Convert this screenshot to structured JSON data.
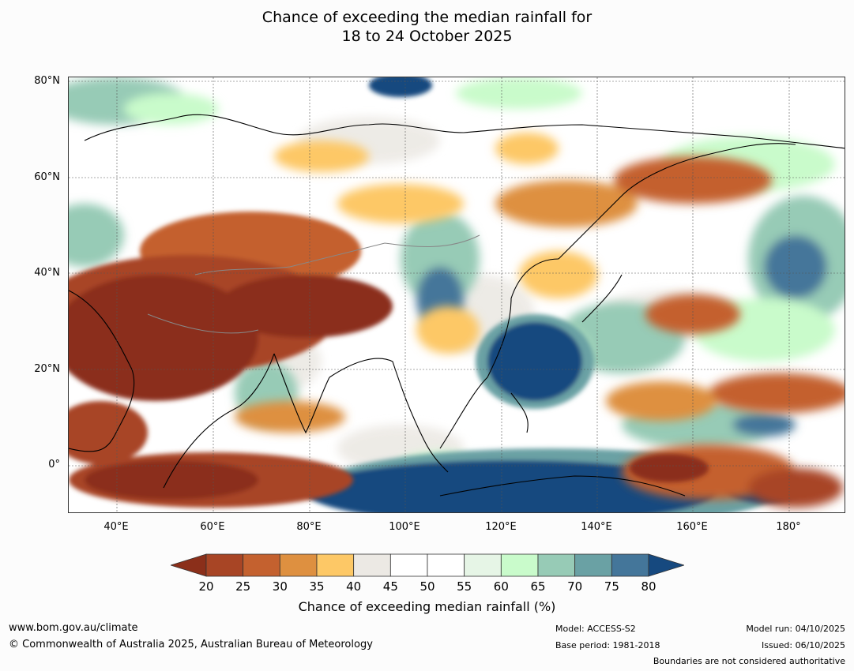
{
  "title": {
    "line1": "Chance of exceeding the median rainfall for",
    "line2": "18 to 24 October 2025"
  },
  "map": {
    "lat_labels": [
      "80°N",
      "60°N",
      "40°N",
      "20°N",
      "0°"
    ],
    "lon_labels": [
      "40°E",
      "60°E",
      "80°E",
      "100°E",
      "120°E",
      "140°E",
      "160°E",
      "180°"
    ]
  },
  "colorbar": {
    "ticks": [
      "20",
      "25",
      "30",
      "35",
      "40",
      "45",
      "50",
      "55",
      "60",
      "65",
      "70",
      "75",
      "80"
    ],
    "colors": [
      "#8b2f1a",
      "#a84525",
      "#c4612f",
      "#de9040",
      "#fdc866",
      "#ece9e4",
      "#ffffff",
      "#ffffff",
      "#e6f5e6",
      "#c9fbcb",
      "#97cbb6",
      "#6aa1a4",
      "#44769a",
      "#16497f"
    ],
    "label": "Chance of exceeding median rainfall (%)"
  },
  "footer": {
    "website": "www.bom.gov.au/climate",
    "copyright": "© Commonwealth of Australia 2025, Australian Bureau of Meteorology",
    "model": "Model: ACCESS-S2",
    "base_period": "Base period: 1981-2018",
    "model_run": "Model run: 04/10/2025",
    "issued": "Issued: 06/10/2025",
    "disclaimer": "Boundaries are not considered authoritative"
  }
}
